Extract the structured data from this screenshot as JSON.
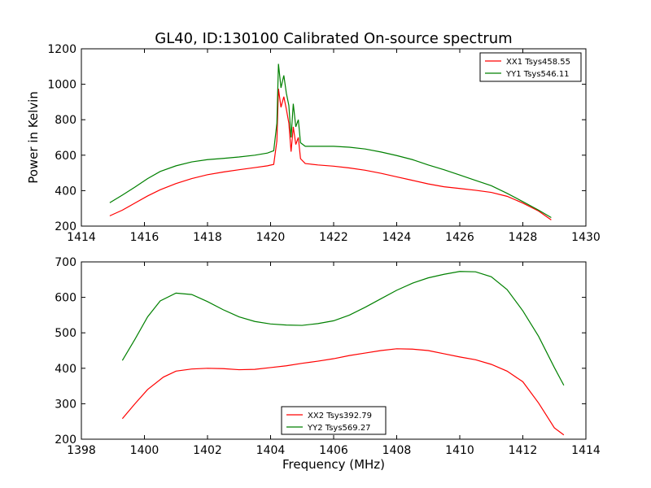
{
  "figure": {
    "title": "GL40, ID:130100 Calibrated On-source spectrum",
    "ylabel": "Power in Kelvin",
    "xlabel": "Frequency (MHz)"
  },
  "colors": {
    "red": "#ff0000",
    "green": "#008000",
    "axis": "#000000"
  },
  "chart_data": [
    {
      "type": "line",
      "xlim": [
        1414,
        1430
      ],
      "ylim": [
        200,
        1200
      ],
      "xticks": [
        1414,
        1416,
        1418,
        1420,
        1422,
        1424,
        1426,
        1428,
        1430
      ],
      "yticks": [
        200,
        400,
        600,
        800,
        1000,
        1200
      ],
      "legend_position": "top-right",
      "series": [
        {
          "name": "XX1 Tsys458.55",
          "color": "#ff0000",
          "points": [
            [
              1414.9,
              258
            ],
            [
              1415.3,
              290
            ],
            [
              1415.7,
              330
            ],
            [
              1416.1,
              370
            ],
            [
              1416.5,
              405
            ],
            [
              1417.0,
              440
            ],
            [
              1417.5,
              468
            ],
            [
              1418.0,
              490
            ],
            [
              1418.5,
              505
            ],
            [
              1419.0,
              518
            ],
            [
              1419.5,
              530
            ],
            [
              1419.9,
              540
            ],
            [
              1420.1,
              548
            ],
            [
              1420.2,
              680
            ],
            [
              1420.25,
              975
            ],
            [
              1420.33,
              870
            ],
            [
              1420.42,
              930
            ],
            [
              1420.5,
              860
            ],
            [
              1420.58,
              780
            ],
            [
              1420.65,
              620
            ],
            [
              1420.72,
              760
            ],
            [
              1420.8,
              660
            ],
            [
              1420.88,
              700
            ],
            [
              1420.95,
              580
            ],
            [
              1421.1,
              553
            ],
            [
              1421.5,
              545
            ],
            [
              1422.0,
              538
            ],
            [
              1422.5,
              528
            ],
            [
              1423.0,
              515
            ],
            [
              1423.5,
              498
            ],
            [
              1424.0,
              478
            ],
            [
              1424.5,
              458
            ],
            [
              1425.0,
              438
            ],
            [
              1425.5,
              422
            ],
            [
              1426.0,
              412
            ],
            [
              1426.5,
              402
            ],
            [
              1427.0,
              390
            ],
            [
              1427.5,
              368
            ],
            [
              1428.0,
              330
            ],
            [
              1428.5,
              285
            ],
            [
              1428.9,
              235
            ]
          ]
        },
        {
          "name": "YY1 Tsys546.11",
          "color": "#008000",
          "points": [
            [
              1414.9,
              332
            ],
            [
              1415.3,
              375
            ],
            [
              1415.7,
              420
            ],
            [
              1416.1,
              468
            ],
            [
              1416.5,
              508
            ],
            [
              1417.0,
              540
            ],
            [
              1417.5,
              562
            ],
            [
              1418.0,
              575
            ],
            [
              1418.5,
              582
            ],
            [
              1419.0,
              590
            ],
            [
              1419.5,
              600
            ],
            [
              1419.9,
              612
            ],
            [
              1420.1,
              625
            ],
            [
              1420.2,
              780
            ],
            [
              1420.25,
              1115
            ],
            [
              1420.33,
              980
            ],
            [
              1420.42,
              1050
            ],
            [
              1420.5,
              950
            ],
            [
              1420.58,
              880
            ],
            [
              1420.65,
              700
            ],
            [
              1420.72,
              890
            ],
            [
              1420.8,
              760
            ],
            [
              1420.88,
              800
            ],
            [
              1420.95,
              670
            ],
            [
              1421.1,
              650
            ],
            [
              1421.5,
              650
            ],
            [
              1422.0,
              650
            ],
            [
              1422.5,
              645
            ],
            [
              1423.0,
              635
            ],
            [
              1423.5,
              618
            ],
            [
              1424.0,
              598
            ],
            [
              1424.5,
              575
            ],
            [
              1425.0,
              545
            ],
            [
              1425.5,
              518
            ],
            [
              1426.0,
              488
            ],
            [
              1426.5,
              458
            ],
            [
              1427.0,
              428
            ],
            [
              1427.5,
              385
            ],
            [
              1428.0,
              338
            ],
            [
              1428.5,
              290
            ],
            [
              1428.9,
              248
            ]
          ]
        }
      ]
    },
    {
      "type": "line",
      "xlim": [
        1398,
        1414
      ],
      "ylim": [
        200,
        700
      ],
      "xticks": [
        1398,
        1400,
        1402,
        1404,
        1406,
        1408,
        1410,
        1412,
        1414
      ],
      "yticks": [
        200,
        300,
        400,
        500,
        600,
        700
      ],
      "legend_position": "bottom-center",
      "series": [
        {
          "name": "XX2 Tsys392.79",
          "color": "#ff0000",
          "points": [
            [
              1399.3,
              258
            ],
            [
              1399.7,
              300
            ],
            [
              1400.1,
              340
            ],
            [
              1400.6,
              375
            ],
            [
              1401.0,
              392
            ],
            [
              1401.5,
              398
            ],
            [
              1402.0,
              400
            ],
            [
              1402.5,
              399
            ],
            [
              1403.0,
              396
            ],
            [
              1403.5,
              397
            ],
            [
              1404.0,
              402
            ],
            [
              1404.5,
              407
            ],
            [
              1405.0,
              414
            ],
            [
              1405.5,
              420
            ],
            [
              1406.0,
              427
            ],
            [
              1406.5,
              436
            ],
            [
              1407.0,
              443
            ],
            [
              1407.5,
              450
            ],
            [
              1408.0,
              455
            ],
            [
              1408.5,
              454
            ],
            [
              1409.0,
              450
            ],
            [
              1409.5,
              441
            ],
            [
              1410.0,
              432
            ],
            [
              1410.5,
              424
            ],
            [
              1411.0,
              411
            ],
            [
              1411.5,
              392
            ],
            [
              1412.0,
              362
            ],
            [
              1412.5,
              302
            ],
            [
              1413.0,
              232
            ],
            [
              1413.3,
              212
            ]
          ]
        },
        {
          "name": "YY2 Tsys569.27",
          "color": "#008000",
          "points": [
            [
              1399.3,
              422
            ],
            [
              1399.7,
              482
            ],
            [
              1400.1,
              545
            ],
            [
              1400.5,
              590
            ],
            [
              1401.0,
              612
            ],
            [
              1401.5,
              608
            ],
            [
              1402.0,
              588
            ],
            [
              1402.5,
              565
            ],
            [
              1403.0,
              545
            ],
            [
              1403.5,
              532
            ],
            [
              1404.0,
              525
            ],
            [
              1404.5,
              522
            ],
            [
              1405.0,
              521
            ],
            [
              1405.5,
              526
            ],
            [
              1406.0,
              534
            ],
            [
              1406.5,
              550
            ],
            [
              1407.0,
              572
            ],
            [
              1407.5,
              596
            ],
            [
              1408.0,
              620
            ],
            [
              1408.5,
              640
            ],
            [
              1409.0,
              655
            ],
            [
              1409.5,
              665
            ],
            [
              1410.0,
              673
            ],
            [
              1410.5,
              672
            ],
            [
              1411.0,
              658
            ],
            [
              1411.5,
              622
            ],
            [
              1412.0,
              562
            ],
            [
              1412.5,
              490
            ],
            [
              1413.0,
              402
            ],
            [
              1413.3,
              352
            ]
          ]
        }
      ]
    }
  ]
}
